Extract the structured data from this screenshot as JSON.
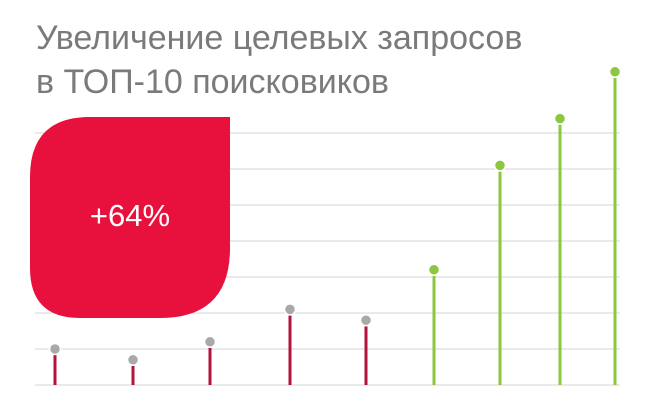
{
  "chart_data": {
    "type": "lollipop",
    "title": [
      "Увеличение целевых запросов",
      "в ТОП-10 поисковиков"
    ],
    "annotation": "+64%",
    "categories": [
      null,
      null,
      null,
      null,
      null,
      null,
      null,
      null,
      null
    ],
    "values": [
      1.0,
      0.7,
      1.2,
      2.1,
      1.8,
      3.2,
      6.1,
      7.4,
      8.7
    ],
    "colors": [
      "#b3123d",
      "#b3123d",
      "#b3123d",
      "#b3123d",
      "#b3123d",
      "#8dc63f",
      "#8dc63f",
      "#8dc63f",
      "#8dc63f"
    ],
    "dot_colors": [
      "#a9a9a9",
      "#a9a9a9",
      "#a9a9a9",
      "#a9a9a9",
      "#a9a9a9",
      "#8dc63f",
      "#8dc63f",
      "#8dc63f",
      "#8dc63f"
    ],
    "annotation_color": "#e8103c",
    "ylim": [
      0,
      9
    ],
    "yticks": [
      0,
      1,
      2,
      3,
      4,
      5,
      6,
      7
    ],
    "grid": true
  }
}
